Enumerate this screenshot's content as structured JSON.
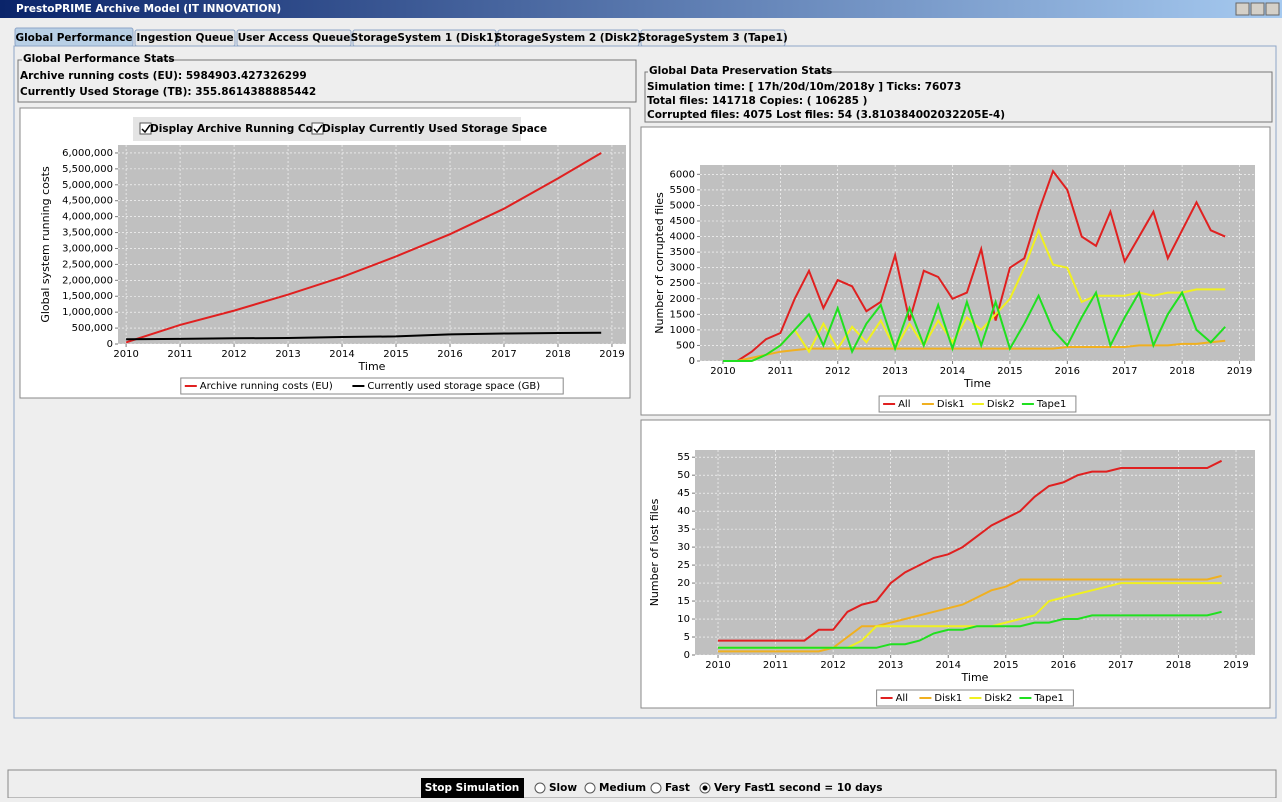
{
  "window_title": "PrestoPRIME Archive Model (IT INNOVATION)",
  "tabs": [
    "Global Performance",
    "Ingestion Queue",
    "User Access Queue",
    "StorageSystem 1 (Disk1)",
    "StorageSystem 2 (Disk2)",
    "StorageSystem 3 (Tape1)"
  ],
  "active_tab": 0,
  "global_stats": {
    "title": "Global Performance Stats",
    "lines": [
      "Archive running costs (EU): 5984903.427326299",
      "Currently Used Storage (TB): 355.8614388885442"
    ]
  },
  "preservation_stats": {
    "title": "Global Data Preservation Stats",
    "lines": [
      "Simulation time: [ 17h/20d/10m/2018y ] Ticks: 76073",
      "Total files: 141718 Copies: ( 106285 )",
      "Corrupted files: 4075 Lost files: 54 (3.810384002032205E-4)"
    ]
  },
  "checkboxes": [
    "Display Archive Running Cost",
    "Display Currently Used Storage Space"
  ],
  "charts": [
    {
      "type": "line",
      "x_label": "Time",
      "y_label": "Global system running costs",
      "x": [
        2010,
        2011,
        2012,
        2013,
        2014,
        2015,
        2016,
        2017,
        2018,
        2018.8
      ],
      "series": [
        {
          "name": "Archive running costs (EU)",
          "color": "#e02020",
          "values": [
            50000,
            600000,
            1050000,
            1550000,
            2100000,
            2750000,
            3450000,
            4250000,
            5200000,
            6000000
          ]
        },
        {
          "name": "Currently used storage space (GB)",
          "color": "#000000",
          "values": [
            150000,
            160000,
            180000,
            190000,
            220000,
            240000,
            300000,
            330000,
            345000,
            355000
          ]
        }
      ],
      "xlim": [
        2009.85,
        2019.26
      ],
      "xticks": [
        2010,
        2011,
        2012,
        2013,
        2014,
        2015,
        2016,
        2017,
        2018,
        2019
      ],
      "ylim": [
        0,
        6250000
      ],
      "yticks": [
        0,
        {
          "value": 500000,
          "label": "500,000"
        },
        {
          "value": 1000000,
          "label": "1,000,000"
        },
        {
          "value": 1500000,
          "label": "1,500,000"
        },
        {
          "value": 2000000,
          "label": "2,000,000"
        },
        {
          "value": 2500000,
          "label": "2,500,000"
        },
        {
          "value": 3000000,
          "label": "3,000,000"
        },
        {
          "value": 3500000,
          "label": "3,500,000"
        },
        {
          "value": 4000000,
          "label": "4,000,000"
        },
        {
          "value": 4500000,
          "label": "4,500,000"
        },
        {
          "value": 5000000,
          "label": "5,000,000"
        },
        {
          "value": 5500000,
          "label": "5,500,000"
        },
        {
          "value": 6000000,
          "label": "6,000,000"
        }
      ],
      "grid": true
    },
    {
      "type": "line",
      "x_label": "Time",
      "y_label": "Number of corrupted files",
      "x": [
        2010,
        2010.25,
        2010.5,
        2010.75,
        2011,
        2011.25,
        2011.5,
        2011.75,
        2012,
        2012.25,
        2012.5,
        2012.75,
        2013,
        2013.25,
        2013.5,
        2013.75,
        2014,
        2014.25,
        2014.5,
        2014.75,
        2015,
        2015.25,
        2015.5,
        2015.75,
        2016,
        2016.25,
        2016.5,
        2016.75,
        2017,
        2017.25,
        2017.5,
        2017.75,
        2018,
        2018.25,
        2018.5,
        2018.75
      ],
      "series": [
        {
          "name": "All",
          "color": "#e02020",
          "values": [
            0,
            0,
            300,
            700,
            900,
            2000,
            2900,
            1700,
            2600,
            2400,
            1600,
            1900,
            3400,
            1300,
            2900,
            2700,
            2000,
            2200,
            3600,
            1300,
            3000,
            3300,
            4800,
            6100,
            5500,
            4000,
            3700,
            4800,
            3200,
            4000,
            4800,
            3300,
            4200,
            5100,
            4200,
            4000
          ]
        },
        {
          "name": "Disk1",
          "color": "#f0b020",
          "values": [
            0,
            0,
            100,
            200,
            300,
            350,
            400,
            400,
            400,
            400,
            400,
            400,
            400,
            400,
            400,
            400,
            400,
            400,
            400,
            400,
            400,
            400,
            400,
            400,
            450,
            450,
            450,
            450,
            450,
            500,
            500,
            500,
            550,
            550,
            600,
            650
          ]
        },
        {
          "name": "Disk2",
          "color": "#f0f020",
          "values": [
            0,
            0,
            0,
            200,
            500,
            1000,
            300,
            1200,
            400,
            1100,
            600,
            1300,
            400,
            1200,
            500,
            1300,
            600,
            1400,
            1000,
            1500,
            2000,
            3000,
            4200,
            3100,
            3000,
            1900,
            2100,
            2100,
            2100,
            2200,
            2100,
            2200,
            2200,
            2300,
            2300,
            2300
          ]
        },
        {
          "name": "Tape1",
          "color": "#20e020",
          "values": [
            0,
            0,
            0,
            200,
            500,
            1000,
            1500,
            500,
            1700,
            300,
            1200,
            1800,
            400,
            1700,
            500,
            1800,
            400,
            1900,
            500,
            1900,
            400,
            1200,
            2100,
            1000,
            500,
            1400,
            2200,
            500,
            1400,
            2200,
            500,
            1500,
            2200,
            1000,
            600,
            1100
          ]
        }
      ],
      "xlim": [
        2009.6,
        2019.27
      ],
      "xticks": [
        2010,
        2011,
        2012,
        2013,
        2014,
        2015,
        2016,
        2017,
        2018,
        2019
      ],
      "ylim": [
        0,
        6300
      ],
      "yticks": [
        0,
        500,
        1000,
        1500,
        2000,
        2500,
        3000,
        3500,
        4000,
        4500,
        5000,
        5500,
        6000
      ],
      "grid": true
    },
    {
      "type": "line",
      "x_label": "Time",
      "y_label": "Number of lost files",
      "x": [
        2010,
        2010.25,
        2010.5,
        2010.75,
        2011,
        2011.25,
        2011.5,
        2011.75,
        2012,
        2012.25,
        2012.5,
        2012.75,
        2013,
        2013.25,
        2013.5,
        2013.75,
        2014,
        2014.25,
        2014.5,
        2014.75,
        2015,
        2015.25,
        2015.5,
        2015.75,
        2016,
        2016.25,
        2016.5,
        2016.75,
        2017,
        2017.25,
        2017.5,
        2017.75,
        2018,
        2018.25,
        2018.5,
        2018.75
      ],
      "series": [
        {
          "name": "All",
          "color": "#e02020",
          "values": [
            4,
            4,
            4,
            4,
            4,
            4,
            4,
            7,
            7,
            12,
            14,
            15,
            20,
            23,
            25,
            27,
            28,
            30,
            33,
            36,
            38,
            40,
            44,
            47,
            48,
            50,
            51,
            51,
            52,
            52,
            52,
            52,
            52,
            52,
            52,
            54
          ]
        },
        {
          "name": "Disk1",
          "color": "#f0b020",
          "values": [
            1,
            1,
            1,
            1,
            1,
            1,
            1,
            1,
            2,
            5,
            8,
            8,
            9,
            10,
            11,
            12,
            13,
            14,
            16,
            18,
            19,
            21,
            21,
            21,
            21,
            21,
            21,
            21,
            21,
            21,
            21,
            21,
            21,
            21,
            21,
            22
          ]
        },
        {
          "name": "Disk2",
          "color": "#f0f020",
          "values": [
            2,
            2,
            2,
            2,
            2,
            2,
            2,
            2,
            2,
            2,
            4,
            8,
            8,
            8,
            8,
            8,
            8,
            8,
            8,
            8,
            9,
            10,
            11,
            15,
            16,
            17,
            18,
            19,
            20,
            20,
            20,
            20,
            20,
            20,
            20,
            20
          ]
        },
        {
          "name": "Tape1",
          "color": "#20e020",
          "values": [
            2,
            2,
            2,
            2,
            2,
            2,
            2,
            2,
            2,
            2,
            2,
            2,
            3,
            3,
            4,
            6,
            7,
            7,
            8,
            8,
            8,
            8,
            9,
            9,
            10,
            10,
            11,
            11,
            11,
            11,
            11,
            11,
            11,
            11,
            11,
            12
          ]
        }
      ],
      "xlim": [
        2009.6,
        2019.33
      ],
      "xticks": [
        2010,
        2011,
        2012,
        2013,
        2014,
        2015,
        2016,
        2017,
        2018,
        2019
      ],
      "ylim": [
        0,
        57
      ],
      "yticks": [
        0,
        5,
        10,
        15,
        20,
        25,
        30,
        35,
        40,
        45,
        50,
        55
      ],
      "grid": true
    }
  ],
  "controls": {
    "button": "Stop Simulation",
    "speeds": [
      "Slow",
      "Medium",
      "Fast",
      "Very Fast"
    ],
    "selected_speed": 3,
    "rate": "1 second = 10 days"
  }
}
